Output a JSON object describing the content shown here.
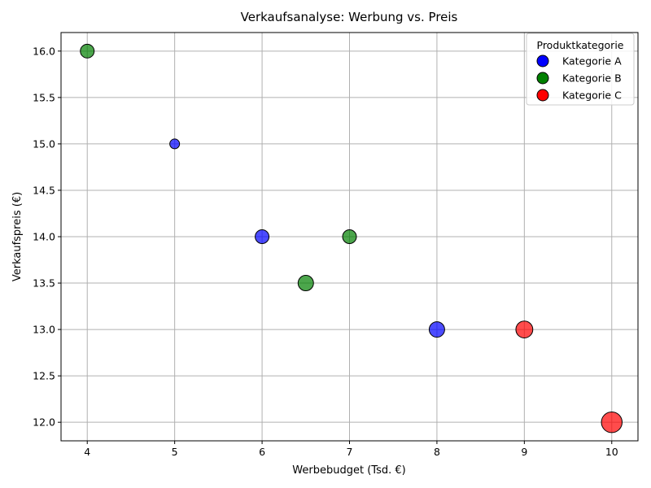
{
  "chart_data": {
    "type": "scatter",
    "title": "Verkaufsanalyse: Werbung vs. Preis",
    "xlabel": "Werbebudget (Tsd. €)",
    "ylabel": "Verkaufspreis (€)",
    "xlim": [
      3.7,
      10.3
    ],
    "ylim": [
      11.8,
      16.2
    ],
    "x_ticks": [
      4,
      5,
      6,
      7,
      8,
      9,
      10
    ],
    "x_tick_labels": [
      "4",
      "5",
      "6",
      "7",
      "8",
      "9",
      "10"
    ],
    "y_ticks": [
      12.0,
      12.5,
      13.0,
      13.5,
      14.0,
      14.5,
      15.0,
      15.5,
      16.0
    ],
    "y_tick_labels": [
      "12.0",
      "12.5",
      "13.0",
      "13.5",
      "14.0",
      "14.5",
      "15.0",
      "15.5",
      "16.0"
    ],
    "grid": true,
    "legend": {
      "title": "Produktkategorie",
      "placement": "top-right"
    },
    "series": [
      {
        "name": "Kategorie A",
        "color": "#0000ff",
        "points": [
          {
            "x": 5,
            "y": 15.0,
            "size": 1
          },
          {
            "x": 6,
            "y": 14.0,
            "size": 2
          },
          {
            "x": 8,
            "y": 13.0,
            "size": 2.5
          }
        ]
      },
      {
        "name": "Kategorie B",
        "color": "#008000",
        "points": [
          {
            "x": 4,
            "y": 16.0,
            "size": 2
          },
          {
            "x": 6.5,
            "y": 13.5,
            "size": 2.5
          },
          {
            "x": 7,
            "y": 14.0,
            "size": 2
          }
        ]
      },
      {
        "name": "Kategorie C",
        "color": "#ff0000",
        "points": [
          {
            "x": 9,
            "y": 13.0,
            "size": 3
          },
          {
            "x": 10,
            "y": 12.0,
            "size": 4.5
          }
        ]
      }
    ]
  }
}
